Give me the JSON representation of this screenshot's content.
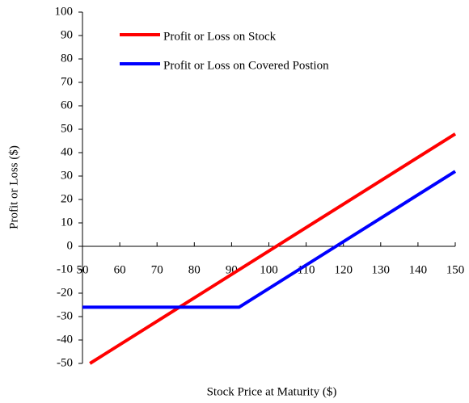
{
  "chart_data": {
    "type": "line",
    "xlabel": "Stock Price at Maturity ($)",
    "ylabel": "Profit or Loss ($)",
    "series": [
      {
        "name": "Profit or Loss on Stock",
        "color": "#ff0000",
        "x": [
          52,
          150
        ],
        "values": [
          -50,
          48
        ]
      },
      {
        "name": "Profit or Loss on Covered Postion",
        "color": "#0000ff",
        "x": [
          50,
          92,
          150
        ],
        "values": [
          -26,
          -26,
          32
        ]
      }
    ],
    "xlim": [
      50,
      150
    ],
    "xticks": [
      50,
      60,
      70,
      80,
      90,
      100,
      110,
      120,
      130,
      140,
      150
    ],
    "ylim": [
      -50,
      100
    ],
    "yticks": [
      -50,
      -40,
      -30,
      -20,
      -10,
      0,
      10,
      20,
      30,
      40,
      50,
      60,
      70,
      80,
      90,
      100
    ],
    "legend": "upper-left"
  }
}
